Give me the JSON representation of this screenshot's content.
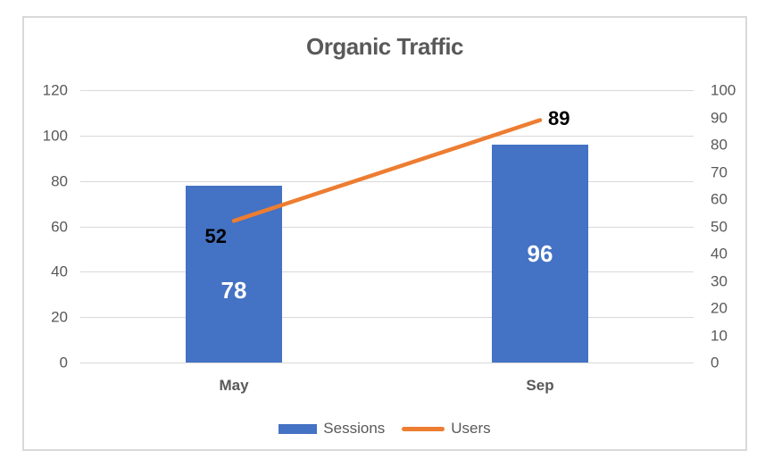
{
  "title": "Organic Traffic",
  "colors": {
    "bar": "#4472C4",
    "line": "#ED7D31",
    "text": "#595959",
    "grid": "#D9D9D9",
    "bar_label": "#FFFFFF",
    "line_label": "#000000",
    "background": "#FFFFFF"
  },
  "chart_data": {
    "type": "combo",
    "title": "Organic Traffic",
    "categories": [
      "May",
      "Sep"
    ],
    "series": [
      {
        "name": "Sessions",
        "type": "bar",
        "axis": "left",
        "values": [
          78,
          96
        ],
        "color": "#4472C4"
      },
      {
        "name": "Users",
        "type": "line",
        "axis": "right",
        "values": [
          52,
          89
        ],
        "color": "#ED7D31"
      }
    ],
    "axes": {
      "left": {
        "min": 0,
        "max": 120,
        "step": 20,
        "ticks": [
          120,
          100,
          80,
          60,
          40,
          20,
          0
        ]
      },
      "right": {
        "min": 0,
        "max": 100,
        "step": 10,
        "ticks": [
          100,
          90,
          80,
          70,
          60,
          50,
          40,
          30,
          20,
          10,
          0
        ]
      }
    },
    "grid": true,
    "data_labels": true,
    "legend": {
      "position": "bottom",
      "entries": [
        "Sessions",
        "Users"
      ]
    }
  }
}
